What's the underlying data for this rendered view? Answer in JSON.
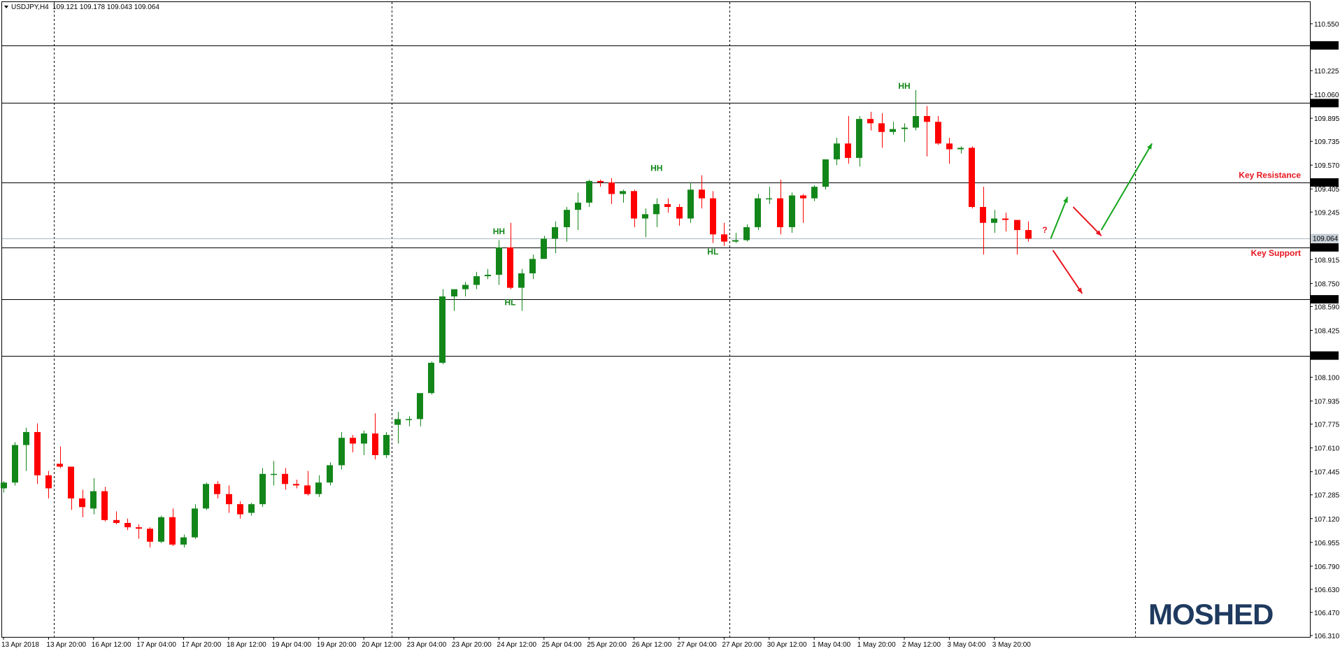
{
  "header": {
    "symbol": "USDJPY,H4",
    "ohlc": "109.121 109.178 109.043 109.064"
  },
  "brand": {
    "logo": "MOSHED",
    "color": "#1f3a5f"
  },
  "colors": {
    "bull": "#13861a",
    "bear": "#ff0000",
    "level_line": "#000000",
    "current_price_line": "#a9b8c4",
    "grid_line": "#000000",
    "arrow_green": "#13a41a",
    "arrow_red": "#e8141e"
  },
  "chart_data": {
    "type": "candlestick",
    "symbol": "USDJPY",
    "timeframe": "H4",
    "ylim": [
      106.3,
      110.7
    ],
    "y_ticks": [
      110.55,
      110.225,
      110.06,
      109.895,
      109.735,
      109.57,
      109.405,
      109.245,
      108.915,
      108.75,
      108.59,
      108.425,
      108.1,
      107.935,
      107.775,
      107.61,
      107.445,
      107.285,
      107.12,
      106.955,
      106.79,
      106.63,
      106.47,
      106.31
    ],
    "x_tick_labels": [
      {
        "i": 0,
        "label": "13 Apr 2018"
      },
      {
        "i": 4,
        "label": "13 Apr 20:00"
      },
      {
        "i": 8,
        "label": "16 Apr 12:00"
      },
      {
        "i": 12,
        "label": "17 Apr 04:00"
      },
      {
        "i": 16,
        "label": "17 Apr 20:00"
      },
      {
        "i": 20,
        "label": "18 Apr 12:00"
      },
      {
        "i": 24,
        "label": "19 Apr 04:00"
      },
      {
        "i": 28,
        "label": "19 Apr 20:00"
      },
      {
        "i": 32,
        "label": "20 Apr 12:00"
      },
      {
        "i": 36,
        "label": "23 Apr 04:00"
      },
      {
        "i": 40,
        "label": "23 Apr 20:00"
      },
      {
        "i": 44,
        "label": "24 Apr 12:00"
      },
      {
        "i": 48,
        "label": "25 Apr 04:00"
      },
      {
        "i": 52,
        "label": "25 Apr 20:00"
      },
      {
        "i": 56,
        "label": "26 Apr 12:00"
      },
      {
        "i": 60,
        "label": "27 Apr 04:00"
      },
      {
        "i": 64,
        "label": "27 Apr 20:00"
      },
      {
        "i": 68,
        "label": "30 Apr 12:00"
      },
      {
        "i": 72,
        "label": "1 May 04:00"
      },
      {
        "i": 76,
        "label": "1 May 20:00"
      },
      {
        "i": 80,
        "label": "2 May 12:00"
      },
      {
        "i": 84,
        "label": "3 May 04:00"
      },
      {
        "i": 88,
        "label": "3 May 20:00"
      }
    ],
    "session_separators": [
      4.5,
      34.5,
      64.5,
      100.5
    ],
    "candles": [
      [
        107.33,
        107.38,
        107.3,
        107.37
      ],
      [
        107.37,
        107.65,
        107.35,
        107.63
      ],
      [
        107.63,
        107.75,
        107.45,
        107.72
      ],
      [
        107.72,
        107.78,
        107.36,
        107.42
      ],
      [
        107.42,
        107.45,
        107.26,
        107.33
      ],
      [
        107.5,
        107.62,
        107.47,
        107.48
      ],
      [
        107.48,
        107.48,
        107.18,
        107.26
      ],
      [
        107.26,
        107.32,
        107.13,
        107.2
      ],
      [
        107.19,
        107.4,
        107.15,
        107.31
      ],
      [
        107.31,
        107.34,
        107.1,
        107.11
      ],
      [
        107.11,
        107.17,
        107.08,
        107.09
      ],
      [
        107.09,
        107.12,
        107.04,
        107.06
      ],
      [
        107.06,
        107.08,
        106.98,
        107.05
      ],
      [
        107.05,
        107.06,
        106.92,
        106.96
      ],
      [
        106.96,
        107.14,
        106.95,
        107.13
      ],
      [
        107.13,
        107.19,
        106.93,
        106.94
      ],
      [
        106.94,
        107.01,
        106.92,
        106.99
      ],
      [
        106.99,
        107.22,
        106.98,
        107.19
      ],
      [
        107.19,
        107.37,
        107.18,
        107.36
      ],
      [
        107.36,
        107.38,
        107.26,
        107.29
      ],
      [
        107.29,
        107.35,
        107.16,
        107.22
      ],
      [
        107.22,
        107.24,
        107.12,
        107.15
      ],
      [
        107.16,
        107.23,
        107.14,
        107.22
      ],
      [
        107.22,
        107.47,
        107.2,
        107.43
      ],
      [
        107.43,
        107.52,
        107.35,
        107.43
      ],
      [
        107.43,
        107.47,
        107.32,
        107.36
      ],
      [
        107.36,
        107.39,
        107.33,
        107.35
      ],
      [
        107.35,
        107.45,
        107.28,
        107.29
      ],
      [
        107.29,
        107.42,
        107.27,
        107.37
      ],
      [
        107.37,
        107.51,
        107.35,
        107.49
      ],
      [
        107.49,
        107.72,
        107.46,
        107.68
      ],
      [
        107.68,
        107.7,
        107.58,
        107.64
      ],
      [
        107.64,
        107.73,
        107.56,
        107.71
      ],
      [
        107.71,
        107.85,
        107.53,
        107.56
      ],
      [
        107.56,
        107.72,
        107.54,
        107.7
      ],
      [
        107.77,
        107.86,
        107.64,
        107.81
      ],
      [
        107.81,
        107.83,
        107.76,
        107.81
      ],
      [
        107.81,
        107.98,
        107.76,
        107.99
      ],
      [
        107.99,
        108.21,
        107.98,
        108.2
      ],
      [
        108.2,
        108.71,
        108.19,
        108.66
      ],
      [
        108.66,
        108.69,
        108.56,
        108.71
      ],
      [
        108.71,
        108.76,
        108.66,
        108.74
      ],
      [
        108.74,
        108.83,
        108.71,
        108.8
      ],
      [
        108.8,
        108.85,
        108.78,
        108.81
      ],
      [
        108.81,
        109.05,
        108.74,
        109.0
      ],
      [
        109.0,
        109.17,
        108.71,
        108.72
      ],
      [
        108.72,
        108.85,
        108.56,
        108.82
      ],
      [
        108.82,
        108.95,
        108.78,
        108.92
      ],
      [
        108.92,
        109.08,
        108.93,
        109.06
      ],
      [
        109.06,
        109.18,
        108.96,
        109.14
      ],
      [
        109.14,
        109.28,
        109.04,
        109.26
      ],
      [
        109.26,
        109.38,
        109.12,
        109.31
      ],
      [
        109.31,
        109.47,
        109.28,
        109.46
      ],
      [
        109.46,
        109.47,
        109.42,
        109.45
      ],
      [
        109.45,
        109.48,
        109.3,
        109.37
      ],
      [
        109.37,
        109.4,
        109.31,
        109.39
      ],
      [
        109.39,
        109.4,
        109.14,
        109.2
      ],
      [
        109.2,
        109.27,
        109.07,
        109.23
      ],
      [
        109.23,
        109.34,
        109.14,
        109.3
      ],
      [
        109.3,
        109.34,
        109.24,
        109.28
      ],
      [
        109.28,
        109.3,
        109.15,
        109.2
      ],
      [
        109.2,
        109.45,
        109.17,
        109.4
      ],
      [
        109.4,
        109.5,
        109.27,
        109.34
      ],
      [
        109.34,
        109.39,
        109.03,
        109.09
      ],
      [
        109.09,
        109.17,
        109.01,
        109.04
      ],
      [
        109.04,
        109.1,
        109.03,
        109.05
      ],
      [
        109.05,
        109.16,
        109.04,
        109.14
      ],
      [
        109.14,
        109.37,
        109.12,
        109.34
      ],
      [
        109.34,
        109.42,
        109.3,
        109.34
      ],
      [
        109.34,
        109.47,
        109.09,
        109.14
      ],
      [
        109.14,
        109.38,
        109.1,
        109.36
      ],
      [
        109.36,
        109.37,
        109.17,
        109.34
      ],
      [
        109.34,
        109.43,
        109.32,
        109.42
      ],
      [
        109.42,
        109.57,
        109.4,
        109.61
      ],
      [
        109.61,
        109.76,
        109.57,
        109.72
      ],
      [
        109.72,
        109.91,
        109.58,
        109.62
      ],
      [
        109.62,
        109.91,
        109.56,
        109.89
      ],
      [
        109.89,
        109.94,
        109.81,
        109.86
      ],
      [
        109.86,
        109.93,
        109.69,
        109.8
      ],
      [
        109.8,
        109.87,
        109.78,
        109.82
      ],
      [
        109.82,
        109.86,
        109.73,
        109.83
      ],
      [
        109.83,
        110.09,
        109.81,
        109.91
      ],
      [
        109.91,
        109.98,
        109.63,
        109.87
      ],
      [
        109.87,
        109.91,
        109.71,
        109.72
      ],
      [
        109.72,
        109.76,
        109.58,
        109.68
      ],
      [
        109.68,
        109.7,
        109.65,
        109.69
      ],
      [
        109.69,
        109.7,
        109.27,
        109.28
      ],
      [
        109.28,
        109.42,
        108.95,
        109.17
      ],
      [
        109.17,
        109.26,
        109.1,
        109.2
      ],
      [
        109.2,
        109.24,
        109.11,
        109.19
      ],
      [
        109.19,
        109.19,
        108.95,
        109.12
      ],
      [
        109.12,
        109.18,
        109.04,
        109.06
      ]
    ],
    "horizontal_levels": [
      {
        "price": 110.4,
        "label": "110.400"
      },
      {
        "price": 110.0,
        "label": "110.000"
      },
      {
        "price": 109.45,
        "label": "109.450"
      },
      {
        "price": 109.0,
        "label": "109.000"
      },
      {
        "price": 108.64,
        "label": "108.640"
      },
      {
        "price": 108.25,
        "label": "108.250"
      }
    ],
    "current_price": {
      "price": 109.064,
      "label": "109.064"
    },
    "structure_labels": [
      {
        "text": "HH",
        "i": 44,
        "price": 109.09
      },
      {
        "text": "HL",
        "i": 45,
        "price": 108.6
      },
      {
        "text": "HH",
        "i": 58,
        "price": 109.53
      },
      {
        "text": "HL",
        "i": 63,
        "price": 108.95
      },
      {
        "text": "HH",
        "i": 80,
        "price": 110.1
      }
    ],
    "zone_labels": [
      {
        "text": "Key Resistance",
        "price": 109.5,
        "color": "#e8141e"
      },
      {
        "text": "Key Support",
        "price": 108.96,
        "color": "#e8141e"
      }
    ],
    "question_mark": {
      "text": "?",
      "i": 92,
      "price": 109.12
    },
    "forecast_arrows": [
      {
        "from_i": 93,
        "from_p": 109.06,
        "to_i": 94.5,
        "to_p": 109.35,
        "color": "#13a41a"
      },
      {
        "from_i": 95,
        "from_p": 109.28,
        "to_i": 97.5,
        "to_p": 109.08,
        "color": "#e8141e"
      },
      {
        "from_i": 97.5,
        "from_p": 109.12,
        "to_i": 102,
        "to_p": 109.72,
        "color": "#13a41a"
      },
      {
        "from_i": 93.2,
        "from_p": 108.98,
        "to_i": 95.8,
        "to_p": 108.68,
        "color": "#e8141e"
      }
    ]
  }
}
